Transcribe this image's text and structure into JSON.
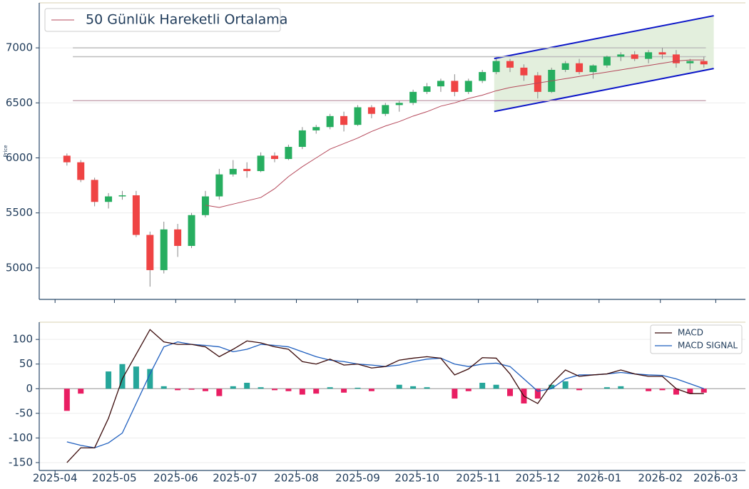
{
  "chart_data": [
    {
      "type": "candlestick",
      "y_label": "Price",
      "legend_corner": "upper left",
      "grid": true,
      "x": [
        "2025-04-07",
        "2025-04-14",
        "2025-04-21",
        "2025-04-28",
        "2025-05-05",
        "2025-05-12",
        "2025-05-19",
        "2025-05-26",
        "2025-06-02",
        "2025-06-09",
        "2025-06-16",
        "2025-06-23",
        "2025-06-30",
        "2025-07-07",
        "2025-07-14",
        "2025-07-21",
        "2025-07-28",
        "2025-08-04",
        "2025-08-11",
        "2025-08-18",
        "2025-08-25",
        "2025-09-01",
        "2025-09-08",
        "2025-09-15",
        "2025-09-22",
        "2025-09-29",
        "2025-10-06",
        "2025-10-13",
        "2025-10-20",
        "2025-10-27",
        "2025-11-03",
        "2025-11-10",
        "2025-11-17",
        "2025-11-24",
        "2025-12-01",
        "2025-12-08",
        "2025-12-15",
        "2025-12-22",
        "2025-12-29",
        "2026-01-05",
        "2026-01-12",
        "2026-01-19",
        "2026-01-26",
        "2026-02-02",
        "2026-02-09",
        "2026-02-16",
        "2026-02-23"
      ],
      "open": [
        6020,
        5960,
        5800,
        5600,
        5650,
        5660,
        5300,
        4980,
        5350,
        5200,
        5480,
        5650,
        5850,
        5900,
        5880,
        6020,
        5990,
        6100,
        6250,
        6280,
        6380,
        6300,
        6460,
        6400,
        6480,
        6500,
        6600,
        6650,
        6700,
        6600,
        6700,
        6780,
        6880,
        6820,
        6750,
        6600,
        6800,
        6860,
        6780,
        6840,
        6920,
        6940,
        6900,
        6960,
        6940,
        6860,
        6880
      ],
      "high": [
        6040,
        5980,
        5820,
        5680,
        5700,
        5700,
        5330,
        5420,
        5400,
        5500,
        5700,
        5900,
        5980,
        5960,
        6050,
        6050,
        6120,
        6280,
        6300,
        6400,
        6420,
        6480,
        6480,
        6500,
        6520,
        6620,
        6680,
        6720,
        6760,
        6720,
        6800,
        6900,
        6900,
        6850,
        6780,
        6820,
        6880,
        6900,
        6850,
        6930,
        6960,
        6970,
        6980,
        7000,
        6980,
        6900,
        6920
      ],
      "low": [
        5930,
        5780,
        5560,
        5540,
        5620,
        5280,
        4830,
        4950,
        5100,
        5180,
        5460,
        5620,
        5830,
        5820,
        5870,
        5960,
        5980,
        6080,
        6220,
        6260,
        6240,
        6290,
        6360,
        6380,
        6420,
        6480,
        6580,
        6600,
        6560,
        6580,
        6680,
        6760,
        6780,
        6700,
        6540,
        6590,
        6780,
        6760,
        6720,
        6820,
        6880,
        6880,
        6860,
        6900,
        6820,
        6800,
        6820
      ],
      "close": [
        5960,
        5800,
        5600,
        5650,
        5660,
        5300,
        4980,
        5350,
        5200,
        5480,
        5650,
        5850,
        5900,
        5880,
        6020,
        5990,
        6100,
        6250,
        6280,
        6380,
        6300,
        6460,
        6400,
        6480,
        6500,
        6600,
        6650,
        6700,
        6600,
        6700,
        6780,
        6880,
        6820,
        6750,
        6600,
        6800,
        6860,
        6780,
        6840,
        6920,
        6940,
        6900,
        6960,
        6940,
        6860,
        6880,
        6850
      ],
      "up_color": "#27ae60",
      "down_color": "#ef4444",
      "series": [
        {
          "name": "50 Günlük Hareketli Ortalama",
          "color": "#b5495b",
          "values": [
            null,
            null,
            null,
            null,
            null,
            null,
            null,
            null,
            null,
            null,
            5570,
            5550,
            5580,
            5610,
            5640,
            5720,
            5830,
            5920,
            6000,
            6080,
            6130,
            6180,
            6240,
            6290,
            6330,
            6380,
            6420,
            6470,
            6500,
            6540,
            6570,
            6610,
            6640,
            6660,
            6680,
            6700,
            6720,
            6740,
            6760,
            6780,
            6800,
            6820,
            6840,
            6860,
            6880,
            6890,
            6890
          ]
        }
      ],
      "hlines": {
        "x": [
          "2025-04-10",
          "2026-02-24"
        ],
        "lines": [
          {
            "value": 7000,
            "color": "#bdbdbd"
          },
          {
            "value": 6920,
            "color": "#bdbdbd"
          },
          {
            "value": 6520,
            "color": "#c9aab5"
          }
        ]
      },
      "channel": {
        "x": [
          "2025-11-09",
          "2026-02-28"
        ],
        "upper": [
          6903,
          7292
        ],
        "lower": [
          6422,
          6812
        ],
        "color": "#0a14c8",
        "fill": "#dcebd5"
      },
      "xlim": [
        "2025-03-24",
        "2026-03-16"
      ],
      "ylim": [
        4714,
        7409
      ],
      "yticks": [
        5000,
        5500,
        6000,
        6500,
        7000
      ]
    },
    {
      "type": "macd",
      "legend_corner": "upper right",
      "grid": true,
      "x": [
        "2025-04-07",
        "2025-04-14",
        "2025-04-21",
        "2025-04-28",
        "2025-05-05",
        "2025-05-12",
        "2025-05-19",
        "2025-05-26",
        "2025-06-02",
        "2025-06-09",
        "2025-06-16",
        "2025-06-23",
        "2025-06-30",
        "2025-07-07",
        "2025-07-14",
        "2025-07-21",
        "2025-07-28",
        "2025-08-04",
        "2025-08-11",
        "2025-08-18",
        "2025-08-25",
        "2025-09-01",
        "2025-09-08",
        "2025-09-15",
        "2025-09-22",
        "2025-09-29",
        "2025-10-06",
        "2025-10-13",
        "2025-10-20",
        "2025-10-27",
        "2025-11-03",
        "2025-11-10",
        "2025-11-17",
        "2025-11-24",
        "2025-12-01",
        "2025-12-08",
        "2025-12-15",
        "2025-12-22",
        "2025-12-29",
        "2026-01-05",
        "2026-01-12",
        "2026-01-19",
        "2026-01-26",
        "2026-02-02",
        "2026-02-09",
        "2026-02-16",
        "2026-02-23"
      ],
      "series": [
        {
          "name": "MACD",
          "color": "#3a0a0a",
          "values": [
            -150,
            -120,
            -120,
            -60,
            20,
            70,
            120,
            95,
            90,
            90,
            85,
            65,
            80,
            97,
            93,
            85,
            80,
            55,
            50,
            60,
            48,
            50,
            42,
            45,
            58,
            62,
            65,
            62,
            28,
            40,
            63,
            62,
            30,
            -15,
            -30,
            10,
            38,
            25,
            28,
            30,
            38,
            30,
            25,
            25,
            0,
            -10,
            -10
          ]
        },
        {
          "name": "MACD SIGNAL",
          "color": "#1f5fbf",
          "values": [
            -108,
            -115,
            -120,
            -110,
            -90,
            -30,
            30,
            85,
            95,
            90,
            88,
            85,
            75,
            80,
            90,
            88,
            85,
            75,
            65,
            58,
            55,
            50,
            48,
            45,
            48,
            55,
            60,
            62,
            50,
            45,
            50,
            52,
            45,
            20,
            -5,
            0,
            20,
            28,
            28,
            30,
            33,
            30,
            28,
            27,
            20,
            10,
            0
          ]
        }
      ],
      "histogram": {
        "pos_color": "#26a69a",
        "neg_color": "#e91e63",
        "values": [
          -45,
          -10,
          0,
          35,
          50,
          45,
          40,
          5,
          -3,
          -2,
          -5,
          -15,
          5,
          12,
          3,
          -3,
          -5,
          -12,
          -10,
          3,
          -8,
          2,
          -5,
          0,
          8,
          5,
          3,
          0,
          -20,
          -5,
          12,
          8,
          -15,
          -30,
          -20,
          8,
          15,
          -3,
          0,
          3,
          5,
          0,
          -5,
          -3,
          -12,
          -10,
          -8
        ]
      },
      "xlim": [
        "2025-03-24",
        "2026-03-16"
      ],
      "ylim": [
        -166,
        135
      ],
      "yticks": [
        -150,
        -100,
        -50,
        0,
        50,
        100
      ],
      "xticks": [
        {
          "value": "2025-04-01",
          "label": "2025-04"
        },
        {
          "value": "2025-05-01",
          "label": "2025-05"
        },
        {
          "value": "2025-06-01",
          "label": "2025-06"
        },
        {
          "value": "2025-07-01",
          "label": "2025-07"
        },
        {
          "value": "2025-08-01",
          "label": "2025-08"
        },
        {
          "value": "2025-09-01",
          "label": "2025-09"
        },
        {
          "value": "2025-10-01",
          "label": "2025-10"
        },
        {
          "value": "2025-11-01",
          "label": "2025-11"
        },
        {
          "value": "2025-12-01",
          "label": "2025-12"
        },
        {
          "value": "2026-01-01",
          "label": "2026-01"
        },
        {
          "value": "2026-02-01",
          "label": "2026-02"
        },
        {
          "value": "2026-03-01",
          "label": "2026-03"
        }
      ]
    }
  ]
}
